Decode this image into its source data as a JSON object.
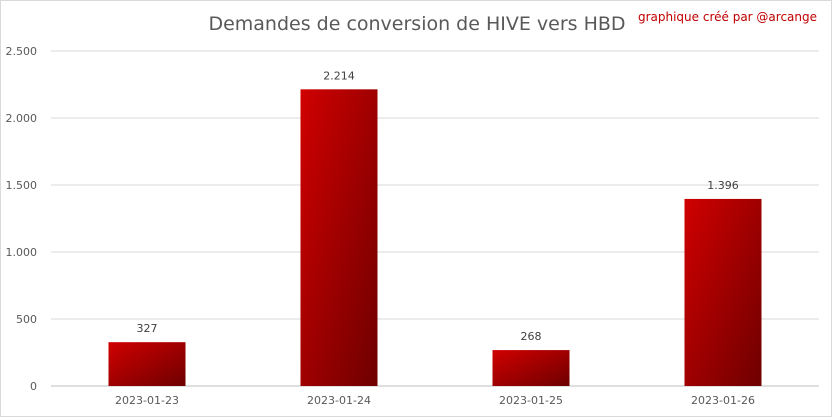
{
  "chart_data": {
    "type": "bar",
    "title": "Demandes de conversion de HIVE vers HBD",
    "credit": "graphique créé par @arcange",
    "categories": [
      "2023-01-23",
      "2023-01-24",
      "2023-01-25",
      "2023-01-26"
    ],
    "values": [
      327,
      2214,
      268,
      1396
    ],
    "data_labels": [
      "327",
      "2.214",
      "268",
      "1.396"
    ],
    "y_ticks": [
      0,
      500,
      1000,
      1500,
      2000,
      2500
    ],
    "y_tick_labels": [
      "0",
      "500",
      "1.000",
      "1.500",
      "2.000",
      "2.500"
    ],
    "ylim": [
      0,
      2500
    ],
    "xlabel": "",
    "ylabel": "",
    "grid": true,
    "legend": "none",
    "colors": {
      "bar_light": "#d00000",
      "bar_dark": "#6e0000",
      "grid": "#d9d9d9",
      "axis": "#bfbfbf"
    }
  }
}
